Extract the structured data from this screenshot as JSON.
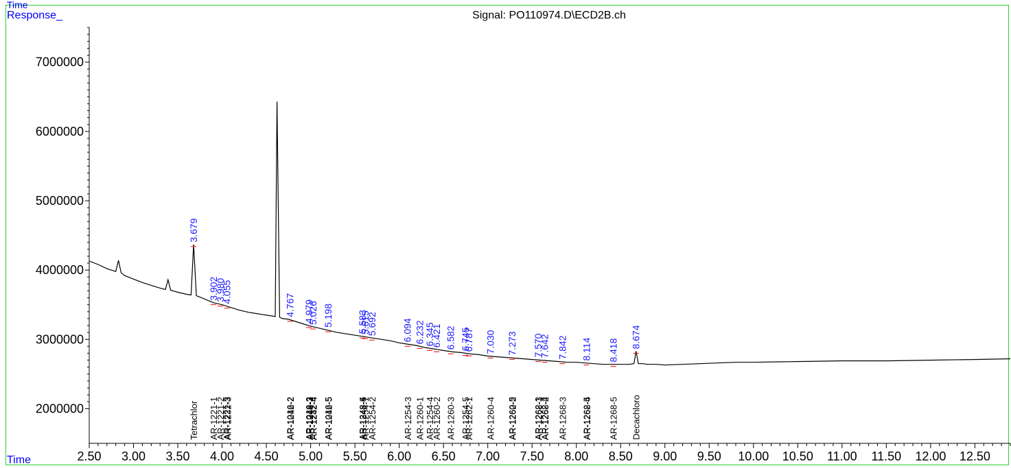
{
  "chart_data": {
    "type": "line",
    "title": "Signal: PO110974.D\\ECD2B.ch",
    "top_text": "Time",
    "ylabel": "Response_",
    "xlabel": "Time",
    "xlim": [
      2.5,
      12.9
    ],
    "ylim": [
      1500000,
      7600000
    ],
    "xticks": [
      "2.50",
      "3.00",
      "3.50",
      "4.00",
      "4.50",
      "5.00",
      "5.50",
      "6.00",
      "6.50",
      "7.00",
      "7.50",
      "8.00",
      "8.50",
      "9.00",
      "9.50",
      "10.00",
      "10.50",
      "11.00",
      "11.50",
      "12.00",
      "12.50"
    ],
    "yticks": [
      "2000000",
      "3000000",
      "4000000",
      "5000000",
      "6000000",
      "7000000"
    ],
    "series": [
      {
        "x": [
          2.5,
          2.6,
          2.7,
          2.8,
          2.83,
          2.86,
          2.9,
          3.0,
          3.1,
          3.2,
          3.3,
          3.36,
          3.39,
          3.42,
          3.5,
          3.6,
          3.65,
          3.679,
          3.71,
          3.75,
          3.9,
          4.0,
          4.1,
          4.2,
          4.3,
          4.4,
          4.5,
          4.6,
          4.62,
          4.65,
          4.68,
          4.75,
          4.8,
          4.9,
          5.0,
          5.1,
          5.2,
          5.3,
          5.4,
          5.5,
          5.6,
          5.7,
          5.8,
          5.9,
          6.0,
          6.1,
          6.2,
          6.3,
          6.4,
          6.5,
          6.6,
          6.7,
          6.8,
          6.9,
          7.0,
          7.1,
          7.2,
          7.3,
          7.4,
          7.5,
          7.6,
          7.7,
          7.8,
          7.9,
          8.0,
          8.1,
          8.2,
          8.3,
          8.4,
          8.5,
          8.6,
          8.65,
          8.674,
          8.7,
          8.75,
          8.8,
          8.9,
          9.0,
          9.2,
          9.4,
          9.6,
          9.8,
          10.0,
          10.5,
          11.0,
          11.5,
          12.0,
          12.5,
          12.9
        ],
        "y": [
          4130000,
          4080000,
          4020000,
          3980000,
          4140000,
          3960000,
          3920000,
          3870000,
          3820000,
          3780000,
          3740000,
          3720000,
          3860000,
          3710000,
          3680000,
          3650000,
          3640000,
          4370000,
          3630000,
          3610000,
          3530000,
          3500000,
          3460000,
          3420000,
          3390000,
          3370000,
          3350000,
          3330000,
          6430000,
          3320000,
          3300000,
          3290000,
          3270000,
          3230000,
          3190000,
          3160000,
          3130000,
          3100000,
          3080000,
          3060000,
          3040000,
          3020000,
          3000000,
          2980000,
          2950000,
          2930000,
          2910000,
          2880000,
          2860000,
          2840000,
          2820000,
          2810000,
          2790000,
          2780000,
          2760000,
          2750000,
          2740000,
          2730000,
          2720000,
          2710000,
          2700000,
          2690000,
          2680000,
          2670000,
          2670000,
          2660000,
          2650000,
          2640000,
          2640000,
          2640000,
          2640000,
          2650000,
          2830000,
          2650000,
          2650000,
          2640000,
          2640000,
          2630000,
          2640000,
          2650000,
          2660000,
          2670000,
          2670000,
          2680000,
          2690000,
          2690000,
          2700000,
          2710000,
          2720000
        ]
      }
    ],
    "peak_labels": [
      {
        "label": "3.679",
        "x": 3.679,
        "y": 4370000
      },
      {
        "label": "3.902",
        "x": 3.902,
        "y": 3530000
      },
      {
        "label": "3.980",
        "x": 3.98,
        "y": 3510000
      },
      {
        "label": "4.055",
        "x": 4.055,
        "y": 3480000
      },
      {
        "label": "4.767",
        "x": 4.767,
        "y": 3290000
      },
      {
        "label": "4.979",
        "x": 4.979,
        "y": 3200000
      },
      {
        "label": "5.026",
        "x": 5.026,
        "y": 3180000
      },
      {
        "label": "5.198",
        "x": 5.198,
        "y": 3140000
      },
      {
        "label": "5.583",
        "x": 5.583,
        "y": 3050000
      },
      {
        "label": "5.615",
        "x": 5.615,
        "y": 3040000
      },
      {
        "label": "5.692",
        "x": 5.692,
        "y": 3020000
      },
      {
        "label": "6.094",
        "x": 6.094,
        "y": 2930000
      },
      {
        "label": "6.232",
        "x": 6.232,
        "y": 2900000
      },
      {
        "label": "6.345",
        "x": 6.345,
        "y": 2870000
      },
      {
        "label": "6.421",
        "x": 6.421,
        "y": 2850000
      },
      {
        "label": "6.582",
        "x": 6.582,
        "y": 2820000
      },
      {
        "label": "6.745",
        "x": 6.745,
        "y": 2800000
      },
      {
        "label": "6.787",
        "x": 6.787,
        "y": 2790000
      },
      {
        "label": "7.030",
        "x": 7.03,
        "y": 2760000
      },
      {
        "label": "7.273",
        "x": 7.273,
        "y": 2740000
      },
      {
        "label": "7.570",
        "x": 7.57,
        "y": 2710000
      },
      {
        "label": "7.642",
        "x": 7.642,
        "y": 2700000
      },
      {
        "label": "7.842",
        "x": 7.842,
        "y": 2680000
      },
      {
        "label": "8.114",
        "x": 8.114,
        "y": 2660000
      },
      {
        "label": "8.418",
        "x": 8.418,
        "y": 2640000
      },
      {
        "label": "8.674",
        "x": 8.674,
        "y": 2830000
      }
    ],
    "compound_labels": [
      {
        "label": "Tetrachlor",
        "x": 3.679
      },
      {
        "label": "AR-1221-1",
        "x": 3.902
      },
      {
        "label": "AR-1221-2",
        "x": 3.98
      },
      {
        "label": "AR-1221-3",
        "x": 4.05
      },
      {
        "label": "AR-1232-3",
        "x": 4.06
      },
      {
        "label": "AR-1016-2",
        "x": 4.767
      },
      {
        "label": "AR-1242-2",
        "x": 4.772
      },
      {
        "label": "AR-1016-3",
        "x": 4.979
      },
      {
        "label": "AR-1242-3",
        "x": 4.982
      },
      {
        "label": "AR-1248-2",
        "x": 4.986
      },
      {
        "label": "AR-1232-4",
        "x": 5.026
      },
      {
        "label": "AR-1242-4",
        "x": 5.029
      },
      {
        "label": "AR-1016-5",
        "x": 5.198
      },
      {
        "label": "AR-1242-5",
        "x": 5.202
      },
      {
        "label": "AR-1248-4",
        "x": 5.583
      },
      {
        "label": "AR-1248-5",
        "x": 5.588
      },
      {
        "label": "AR-1254-1",
        "x": 5.615
      },
      {
        "label": "AR-1254-2",
        "x": 5.692
      },
      {
        "label": "AR-1254-3",
        "x": 6.094
      },
      {
        "label": "AR-1260-1",
        "x": 6.232
      },
      {
        "label": "AR-1254-4",
        "x": 6.345
      },
      {
        "label": "AR-1260-2",
        "x": 6.421
      },
      {
        "label": "AR-1260-3",
        "x": 6.582
      },
      {
        "label": "AR-1254-5",
        "x": 6.745
      },
      {
        "label": "AR-1262-1",
        "x": 6.787
      },
      {
        "label": "AR-1260-4",
        "x": 7.03
      },
      {
        "label": "AR-1260-5",
        "x": 7.273
      },
      {
        "label": "AR-1262-2",
        "x": 7.277
      },
      {
        "label": "AR-1262-3",
        "x": 7.57
      },
      {
        "label": "AR-1268-1",
        "x": 7.574
      },
      {
        "label": "AR-1262-4",
        "x": 7.642
      },
      {
        "label": "AR-1268-2",
        "x": 7.646
      },
      {
        "label": "AR-1268-3",
        "x": 7.842
      },
      {
        "label": "AR-1262-5",
        "x": 8.114
      },
      {
        "label": "AR-1268-4",
        "x": 8.118
      },
      {
        "label": "AR-1268-5",
        "x": 8.418
      },
      {
        "label": "Decachloro",
        "x": 8.674
      }
    ],
    "colors": {
      "trace": "#000000",
      "peak_label": "#1a1aff",
      "axis_label": "#0000ff",
      "frame": "#33cc33",
      "marker": "#ff0000"
    }
  }
}
